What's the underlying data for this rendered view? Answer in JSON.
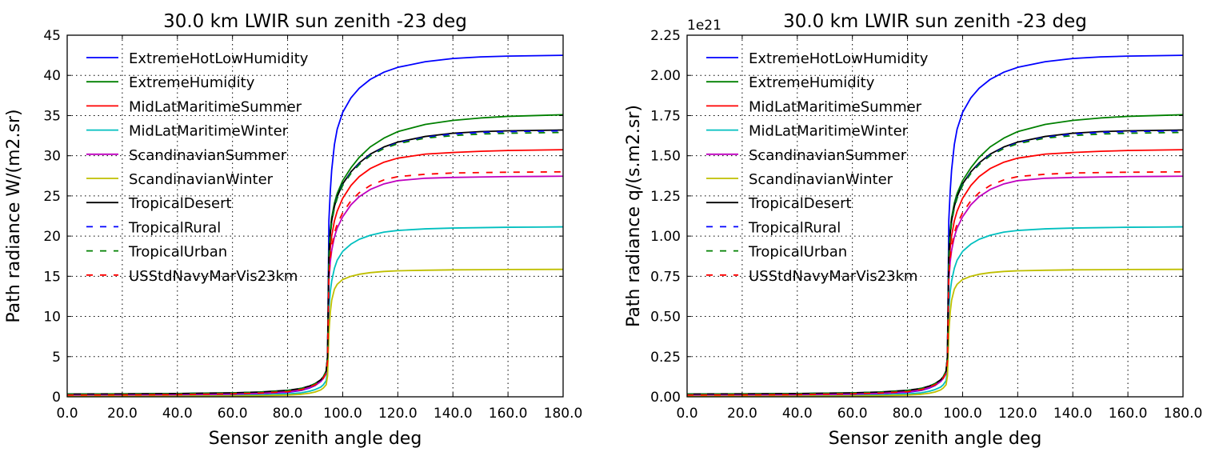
{
  "chart_data": [
    {
      "type": "line",
      "title": "30.0 km LWIR sun zenith -23 deg",
      "xlabel": "Sensor zenith angle deg",
      "ylabel": "Path radiance W/(m2.sr)",
      "xlim": [
        0,
        180
      ],
      "ylim": [
        0,
        45
      ],
      "xticks": [
        0,
        20,
        40,
        60,
        80,
        100,
        120,
        140,
        160,
        180
      ],
      "xtick_labels": [
        "0.0",
        "20.0",
        "40.0",
        "60.0",
        "80.0",
        "100.0",
        "120.0",
        "140.0",
        "160.0",
        "180.0"
      ],
      "yticks": [
        0,
        5,
        10,
        15,
        20,
        25,
        30,
        35,
        40,
        45
      ],
      "ytick_labels": [
        "0",
        "5",
        "10",
        "15",
        "20",
        "25",
        "30",
        "35",
        "40",
        "45"
      ],
      "offset_text": "",
      "grid": true,
      "legend_position": "upper-left",
      "x": [
        0,
        20,
        40,
        60,
        70,
        80,
        85,
        88,
        90,
        92,
        93,
        94,
        94.5,
        95,
        95.5,
        96,
        97,
        98,
        100,
        103,
        106,
        110,
        115,
        120,
        130,
        140,
        150,
        160,
        170,
        180
      ],
      "series": [
        {
          "name": "ExtremeHotLowHumidity",
          "color": "#0000ff",
          "dash": "solid",
          "values": [
            0.17,
            0.19,
            0.23,
            0.32,
            0.4,
            0.55,
            0.8,
            1.1,
            1.4,
            1.9,
            2.3,
            3.0,
            5.0,
            22.0,
            25.6,
            28.2,
            31.4,
            33.3,
            35.4,
            37.2,
            38.4,
            39.5,
            40.4,
            41.0,
            41.7,
            42.1,
            42.3,
            42.4,
            42.45,
            42.5
          ]
        },
        {
          "name": "ExtremeHumidity",
          "color": "#008000",
          "dash": "solid",
          "values": [
            0.3,
            0.32,
            0.36,
            0.45,
            0.55,
            0.75,
            1.0,
            1.3,
            1.6,
            2.1,
            2.5,
            3.2,
            5.0,
            18.0,
            20.8,
            22.3,
            24.1,
            25.3,
            26.9,
            28.5,
            29.8,
            31.1,
            32.2,
            33.0,
            33.9,
            34.4,
            34.7,
            34.9,
            35.0,
            35.1
          ]
        },
        {
          "name": "MidLatMaritimeSummer",
          "color": "#ff0000",
          "dash": "solid",
          "values": [
            0.25,
            0.27,
            0.31,
            0.4,
            0.5,
            0.7,
            0.95,
            1.25,
            1.55,
            2.0,
            2.4,
            3.0,
            4.6,
            16.0,
            18.5,
            20.0,
            21.9,
            23.1,
            24.7,
            26.3,
            27.4,
            28.4,
            29.2,
            29.7,
            30.2,
            30.4,
            30.55,
            30.65,
            30.7,
            30.75
          ]
        },
        {
          "name": "MidLatMaritimeWinter",
          "color": "#00bfbf",
          "dash": "solid",
          "values": [
            0.1,
            0.11,
            0.13,
            0.18,
            0.24,
            0.35,
            0.5,
            0.7,
            0.9,
            1.2,
            1.5,
            2.0,
            3.3,
            11.0,
            13.1,
            14.4,
            16.0,
            17.0,
            18.1,
            19.0,
            19.6,
            20.1,
            20.5,
            20.7,
            20.9,
            21.0,
            21.05,
            21.1,
            21.12,
            21.15
          ]
        },
        {
          "name": "ScandinavianSummer",
          "color": "#bf00bf",
          "dash": "solid",
          "values": [
            0.2,
            0.22,
            0.25,
            0.33,
            0.42,
            0.6,
            0.85,
            1.15,
            1.45,
            1.9,
            2.3,
            2.9,
            4.4,
            14.5,
            16.8,
            18.2,
            19.9,
            21.0,
            22.4,
            23.9,
            24.9,
            25.8,
            26.5,
            26.9,
            27.2,
            27.3,
            27.35,
            27.4,
            27.42,
            27.45
          ]
        },
        {
          "name": "ScandinavianWinter",
          "color": "#bfbf00",
          "dash": "solid",
          "values": [
            0.05,
            0.06,
            0.07,
            0.1,
            0.14,
            0.22,
            0.32,
            0.45,
            0.6,
            0.85,
            1.1,
            1.5,
            2.6,
            8.0,
            10.5,
            12.0,
            13.4,
            14.0,
            14.6,
            15.0,
            15.25,
            15.45,
            15.6,
            15.68,
            15.75,
            15.8,
            15.82,
            15.84,
            15.85,
            15.86
          ]
        },
        {
          "name": "TropicalDesert",
          "color": "#000000",
          "dash": "solid",
          "values": [
            0.35,
            0.37,
            0.41,
            0.5,
            0.6,
            0.8,
            1.05,
            1.35,
            1.65,
            2.1,
            2.5,
            3.2,
            5.0,
            17.5,
            20.3,
            21.9,
            23.7,
            24.9,
            26.5,
            28.0,
            29.1,
            30.2,
            31.1,
            31.7,
            32.4,
            32.8,
            33.0,
            33.1,
            33.15,
            33.2
          ]
        },
        {
          "name": "TropicalRural",
          "color": "#0000ff",
          "dash": "dashed",
          "values": [
            0.34,
            0.36,
            0.4,
            0.49,
            0.59,
            0.79,
            1.04,
            1.34,
            1.64,
            2.1,
            2.5,
            3.2,
            5.0,
            17.4,
            20.2,
            21.8,
            23.6,
            24.8,
            26.4,
            27.9,
            29.0,
            30.1,
            31.0,
            31.6,
            32.3,
            32.7,
            32.9,
            33.0,
            33.05,
            33.1
          ]
        },
        {
          "name": "TropicalUrban",
          "color": "#008000",
          "dash": "dashed",
          "values": [
            0.34,
            0.36,
            0.4,
            0.49,
            0.59,
            0.79,
            1.04,
            1.34,
            1.64,
            2.1,
            2.5,
            3.2,
            5.0,
            17.3,
            20.1,
            21.7,
            23.5,
            24.7,
            26.3,
            27.8,
            28.9,
            30.0,
            30.9,
            31.5,
            32.2,
            32.5,
            32.7,
            32.8,
            32.85,
            32.9
          ]
        },
        {
          "name": "USStdNavyMarVis23km",
          "color": "#ff0000",
          "dash": "dashed",
          "values": [
            0.22,
            0.24,
            0.28,
            0.37,
            0.47,
            0.65,
            0.9,
            1.2,
            1.5,
            1.95,
            2.35,
            2.95,
            4.5,
            15.0,
            17.3,
            18.7,
            20.4,
            21.5,
            22.9,
            24.4,
            25.4,
            26.3,
            27.0,
            27.4,
            27.7,
            27.85,
            27.9,
            27.95,
            27.97,
            28.0
          ]
        }
      ]
    },
    {
      "type": "line",
      "title": "30.0 km LWIR sun zenith -23 deg",
      "xlabel": "Sensor zenith angle deg",
      "ylabel": "Path radiance q/(s.m2.sr)",
      "xlim": [
        0,
        180
      ],
      "ylim": [
        0,
        2.25
      ],
      "xticks": [
        0,
        20,
        40,
        60,
        80,
        100,
        120,
        140,
        160,
        180
      ],
      "xtick_labels": [
        "0.0",
        "20.0",
        "40.0",
        "60.0",
        "80.0",
        "100.0",
        "120.0",
        "140.0",
        "160.0",
        "180.0"
      ],
      "yticks": [
        0,
        0.25,
        0.5,
        0.75,
        1.0,
        1.25,
        1.5,
        1.75,
        2.0,
        2.25
      ],
      "ytick_labels": [
        "0.00",
        "0.25",
        "0.50",
        "0.75",
        "1.00",
        "1.25",
        "1.50",
        "1.75",
        "2.00",
        "2.25"
      ],
      "offset_text": "1e21",
      "grid": true,
      "legend_position": "upper-left",
      "x": [
        0,
        20,
        40,
        60,
        70,
        80,
        85,
        88,
        90,
        92,
        93,
        94,
        94.5,
        95,
        95.5,
        96,
        97,
        98,
        100,
        103,
        106,
        110,
        115,
        120,
        130,
        140,
        150,
        160,
        170,
        180
      ],
      "series": [
        {
          "name": "ExtremeHotLowHumidity",
          "color": "#0000ff",
          "dash": "solid",
          "values": [
            0.0085,
            0.0095,
            0.0115,
            0.016,
            0.02,
            0.0275,
            0.04,
            0.055,
            0.07,
            0.095,
            0.115,
            0.15,
            0.25,
            1.1,
            1.28,
            1.41,
            1.57,
            1.665,
            1.77,
            1.86,
            1.92,
            1.975,
            2.02,
            2.05,
            2.085,
            2.105,
            2.115,
            2.12,
            2.1225,
            2.125
          ]
        },
        {
          "name": "ExtremeHumidity",
          "color": "#008000",
          "dash": "solid",
          "values": [
            0.015,
            0.016,
            0.018,
            0.0225,
            0.0275,
            0.0375,
            0.05,
            0.065,
            0.08,
            0.105,
            0.125,
            0.16,
            0.25,
            0.9,
            1.04,
            1.115,
            1.205,
            1.265,
            1.345,
            1.425,
            1.49,
            1.555,
            1.61,
            1.65,
            1.695,
            1.72,
            1.735,
            1.745,
            1.75,
            1.755
          ]
        },
        {
          "name": "MidLatMaritimeSummer",
          "color": "#ff0000",
          "dash": "solid",
          "values": [
            0.0125,
            0.0135,
            0.0155,
            0.02,
            0.025,
            0.035,
            0.0475,
            0.0625,
            0.0775,
            0.1,
            0.12,
            0.15,
            0.23,
            0.8,
            0.925,
            1.0,
            1.095,
            1.155,
            1.235,
            1.315,
            1.37,
            1.42,
            1.46,
            1.485,
            1.51,
            1.52,
            1.5275,
            1.5325,
            1.535,
            1.5375
          ]
        },
        {
          "name": "MidLatMaritimeWinter",
          "color": "#00bfbf",
          "dash": "solid",
          "values": [
            0.005,
            0.0055,
            0.0065,
            0.009,
            0.012,
            0.0175,
            0.025,
            0.035,
            0.045,
            0.06,
            0.075,
            0.1,
            0.165,
            0.55,
            0.655,
            0.72,
            0.8,
            0.85,
            0.905,
            0.95,
            0.98,
            1.005,
            1.025,
            1.035,
            1.045,
            1.05,
            1.0525,
            1.055,
            1.056,
            1.0575
          ]
        },
        {
          "name": "ScandinavianSummer",
          "color": "#bf00bf",
          "dash": "solid",
          "values": [
            0.01,
            0.011,
            0.0125,
            0.0165,
            0.021,
            0.03,
            0.0425,
            0.0575,
            0.0725,
            0.095,
            0.115,
            0.145,
            0.22,
            0.725,
            0.84,
            0.91,
            0.995,
            1.05,
            1.12,
            1.195,
            1.245,
            1.29,
            1.325,
            1.345,
            1.36,
            1.365,
            1.3675,
            1.37,
            1.371,
            1.3725
          ]
        },
        {
          "name": "ScandinavianWinter",
          "color": "#bfbf00",
          "dash": "solid",
          "values": [
            0.0025,
            0.003,
            0.0035,
            0.005,
            0.007,
            0.011,
            0.016,
            0.0225,
            0.03,
            0.0425,
            0.055,
            0.075,
            0.13,
            0.4,
            0.525,
            0.6,
            0.67,
            0.7,
            0.73,
            0.75,
            0.7625,
            0.7725,
            0.78,
            0.784,
            0.7875,
            0.79,
            0.791,
            0.792,
            0.7925,
            0.793
          ]
        },
        {
          "name": "TropicalDesert",
          "color": "#000000",
          "dash": "solid",
          "values": [
            0.0175,
            0.0185,
            0.0205,
            0.025,
            0.03,
            0.04,
            0.0525,
            0.0675,
            0.0825,
            0.105,
            0.125,
            0.16,
            0.25,
            0.875,
            1.015,
            1.095,
            1.185,
            1.245,
            1.325,
            1.4,
            1.455,
            1.51,
            1.555,
            1.585,
            1.62,
            1.64,
            1.65,
            1.655,
            1.6575,
            1.66
          ]
        },
        {
          "name": "TropicalRural",
          "color": "#0000ff",
          "dash": "dashed",
          "values": [
            0.017,
            0.018,
            0.02,
            0.0245,
            0.0295,
            0.0395,
            0.052,
            0.067,
            0.082,
            0.105,
            0.125,
            0.16,
            0.25,
            0.87,
            1.01,
            1.09,
            1.18,
            1.24,
            1.32,
            1.395,
            1.45,
            1.505,
            1.55,
            1.58,
            1.615,
            1.635,
            1.645,
            1.65,
            1.6525,
            1.655
          ]
        },
        {
          "name": "TropicalUrban",
          "color": "#008000",
          "dash": "dashed",
          "values": [
            0.017,
            0.018,
            0.02,
            0.0245,
            0.0295,
            0.0395,
            0.052,
            0.067,
            0.082,
            0.105,
            0.125,
            0.16,
            0.25,
            0.865,
            1.005,
            1.085,
            1.175,
            1.235,
            1.315,
            1.39,
            1.445,
            1.5,
            1.545,
            1.575,
            1.61,
            1.625,
            1.635,
            1.64,
            1.6425,
            1.645
          ]
        },
        {
          "name": "USStdNavyMarVis23km",
          "color": "#ff0000",
          "dash": "dashed",
          "values": [
            0.011,
            0.012,
            0.014,
            0.0185,
            0.0235,
            0.0325,
            0.045,
            0.06,
            0.075,
            0.0975,
            0.1175,
            0.1475,
            0.225,
            0.75,
            0.865,
            0.935,
            1.02,
            1.075,
            1.145,
            1.22,
            1.27,
            1.315,
            1.35,
            1.37,
            1.385,
            1.3925,
            1.395,
            1.3975,
            1.3985,
            1.4
          ]
        }
      ]
    }
  ]
}
